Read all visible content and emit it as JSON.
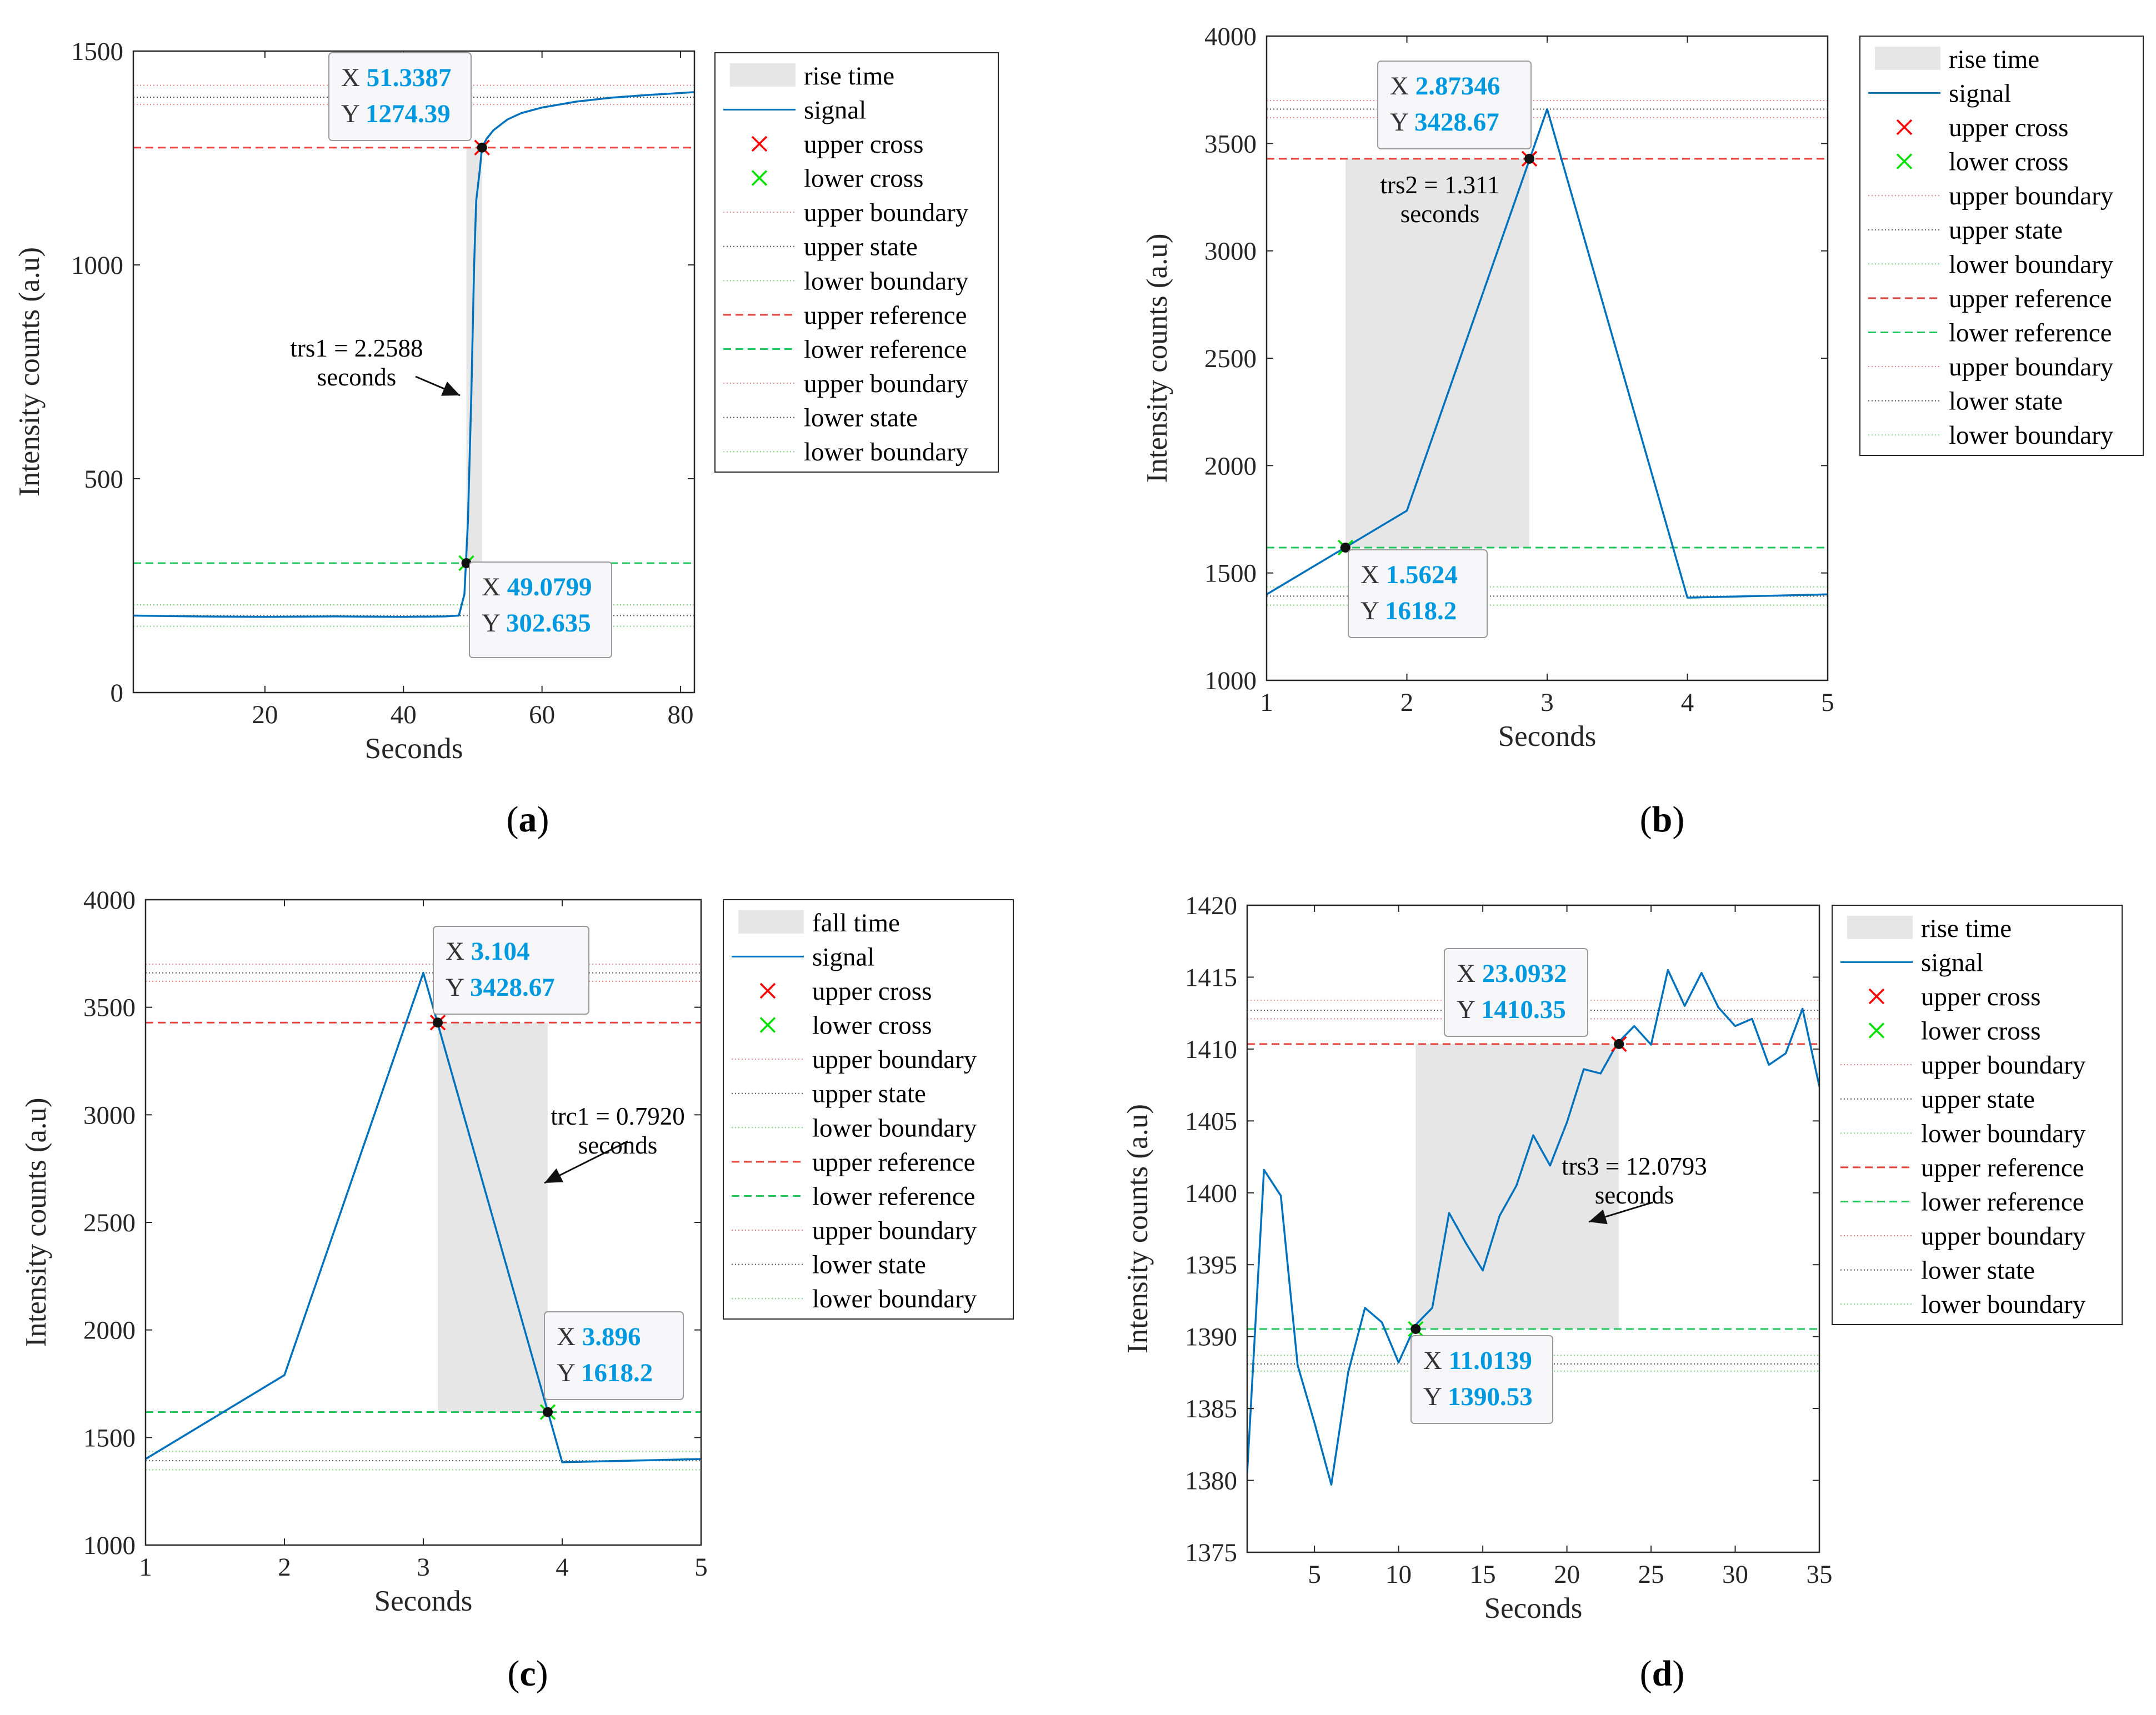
{
  "chart_data": [
    {
      "id": "a",
      "type": "line",
      "caption": "a",
      "xlabel": "Seconds",
      "ylabel": "Intensity counts (a.u)",
      "xlim": [
        1,
        82
      ],
      "ylim": [
        0,
        1500
      ],
      "xticks": [
        20,
        40,
        60,
        80
      ],
      "yticks": [
        0,
        500,
        1000,
        1500
      ],
      "region": {
        "label": "rise time",
        "x0": 49.0799,
        "x1": 51.3387,
        "y0": 302.635,
        "y1": 1274.39
      },
      "series": [
        {
          "name": "signal",
          "x": [
            1,
            10,
            20,
            30,
            40,
            46,
            48,
            48.8,
            49.3,
            49.8,
            50.2,
            50.5,
            51.0,
            51.3387,
            52,
            53,
            55,
            57,
            60,
            65,
            70,
            75,
            80,
            82
          ],
          "y": [
            180,
            178,
            177,
            178,
            177,
            178,
            180,
            230,
            400,
            700,
            1000,
            1150,
            1220,
            1274.39,
            1295,
            1315,
            1340,
            1355,
            1368,
            1382,
            1391,
            1397,
            1402,
            1404
          ]
        }
      ],
      "levels": {
        "upper_reference": 1274.39,
        "lower_reference": 302.635,
        "upper_state": 1392,
        "upper_boundary_1": 1420,
        "upper_boundary_2": 1375,
        "lower_state": 180,
        "lower_boundary_1": 205,
        "lower_boundary_2": 155
      },
      "crosses": {
        "upper": {
          "x": 51.3387,
          "y": 1274.39
        },
        "lower": {
          "x": 49.0799,
          "y": 302.635
        }
      },
      "datatips": [
        {
          "x_label": "X",
          "x_val": "51.3387",
          "y_label": "Y",
          "y_val": "1274.39"
        },
        {
          "x_label": "X",
          "x_val": "49.0799",
          "y_label": "Y",
          "y_val": "302.635"
        }
      ],
      "annotation": {
        "line1": "trs1 = 2.2588",
        "line2": "seconds"
      },
      "legend": [
        "rise time",
        "signal",
        "upper cross",
        "lower cross",
        "upper boundary",
        "upper state",
        "lower boundary",
        "upper reference",
        "lower reference",
        "upper boundary",
        "lower state",
        "lower boundary"
      ]
    },
    {
      "id": "b",
      "type": "line",
      "caption": "b",
      "xlabel": "Seconds",
      "ylabel": "Intensity counts (a.u)",
      "xlim": [
        1,
        5
      ],
      "ylim": [
        1000,
        4000
      ],
      "xticks": [
        1,
        2,
        3,
        4,
        5
      ],
      "yticks": [
        1000,
        1500,
        2000,
        2500,
        3000,
        3500,
        4000
      ],
      "region": {
        "label": "rise time",
        "x0": 1.5624,
        "x1": 2.87346,
        "y0": 1618.2,
        "y1": 3428.67
      },
      "series": [
        {
          "name": "signal",
          "x": [
            1,
            2,
            3,
            4,
            5
          ],
          "y": [
            1400,
            1790,
            3660,
            1385,
            1400
          ]
        }
      ],
      "levels": {
        "upper_reference": 3428.67,
        "lower_reference": 1618.2,
        "upper_state": 3660,
        "upper_boundary_1": 3700,
        "upper_boundary_2": 3620,
        "lower_state": 1392,
        "lower_boundary_1": 1435,
        "lower_boundary_2": 1350
      },
      "crosses": {
        "upper": {
          "x": 2.87346,
          "y": 3428.67
        },
        "lower": {
          "x": 1.5624,
          "y": 1618.2
        }
      },
      "datatips": [
        {
          "x_label": "X",
          "x_val": "2.87346",
          "y_label": "Y",
          "y_val": "3428.67"
        },
        {
          "x_label": "X",
          "x_val": "1.5624",
          "y_label": "Y",
          "y_val": "1618.2"
        }
      ],
      "annotation": {
        "line1": "trs2 = 1.311",
        "line2": "seconds"
      },
      "legend": [
        "rise time",
        "signal",
        "upper cross",
        "lower cross",
        "upper boundary",
        "upper state",
        "lower boundary",
        "upper reference",
        "lower reference",
        "upper boundary",
        "lower state",
        "lower boundary"
      ]
    },
    {
      "id": "c",
      "type": "line",
      "caption": "c",
      "xlabel": "Seconds",
      "ylabel": "Intensity counts (a.u)",
      "xlim": [
        1,
        5
      ],
      "ylim": [
        1000,
        4000
      ],
      "xticks": [
        1,
        2,
        3,
        4,
        5
      ],
      "yticks": [
        1000,
        1500,
        2000,
        2500,
        3000,
        3500,
        4000
      ],
      "region": {
        "label": "fall time",
        "x0": 3.104,
        "x1": 3.896,
        "y0": 1618.2,
        "y1": 3428.67
      },
      "series": [
        {
          "name": "signal",
          "x": [
            1,
            2,
            3,
            4,
            5
          ],
          "y": [
            1400,
            1790,
            3660,
            1385,
            1400
          ]
        }
      ],
      "levels": {
        "upper_reference": 3428.67,
        "lower_reference": 1618.2,
        "upper_state": 3660,
        "upper_boundary_1": 3700,
        "upper_boundary_2": 3620,
        "lower_state": 1392,
        "lower_boundary_1": 1435,
        "lower_boundary_2": 1350
      },
      "crosses": {
        "upper": {
          "x": 3.104,
          "y": 3428.67
        },
        "lower": {
          "x": 3.896,
          "y": 1618.2
        }
      },
      "datatips": [
        {
          "x_label": "X",
          "x_val": "3.104",
          "y_label": "Y",
          "y_val": "3428.67"
        },
        {
          "x_label": "X",
          "x_val": "3.896",
          "y_label": "Y",
          "y_val": "1618.2"
        }
      ],
      "annotation": {
        "line1": "trc1 = 0.7920",
        "line2": "seconds"
      },
      "legend": [
        "fall time",
        "signal",
        "upper cross",
        "lower cross",
        "upper boundary",
        "upper state",
        "lower boundary",
        "upper reference",
        "lower reference",
        "upper boundary",
        "lower state",
        "lower boundary"
      ]
    },
    {
      "id": "d",
      "type": "line",
      "caption": "d",
      "xlabel": "Seconds",
      "ylabel": "Intensity counts (a.u)",
      "xlim": [
        1,
        35
      ],
      "ylim": [
        1375,
        1420
      ],
      "xticks": [
        5,
        10,
        15,
        20,
        25,
        30,
        35
      ],
      "yticks": [
        1375,
        1380,
        1385,
        1390,
        1395,
        1400,
        1405,
        1410,
        1415,
        1420
      ],
      "region": {
        "label": "rise time",
        "x0": 11.0139,
        "x1": 23.0932,
        "y0": 1390.53,
        "y1": 1410.35
      },
      "series": [
        {
          "name": "signal",
          "x": [
            1,
            2,
            3,
            4,
            5,
            6,
            7,
            8,
            9,
            10,
            11,
            12,
            13,
            14,
            15,
            16,
            17,
            18,
            19,
            20,
            21,
            22,
            23,
            24,
            25,
            26,
            27,
            28,
            29,
            30,
            31,
            32,
            33,
            34,
            35
          ],
          "y": [
            1380.5,
            1401.6,
            1399.8,
            1388,
            1384,
            1379.7,
            1387.5,
            1392,
            1391,
            1388.2,
            1390.8,
            1392,
            1398.6,
            1396.5,
            1394.6,
            1398.4,
            1400.5,
            1404,
            1401.9,
            1404.9,
            1408.6,
            1408.3,
            1410.4,
            1411.6,
            1410.3,
            1415.5,
            1413,
            1415.3,
            1412.9,
            1411.6,
            1412.1,
            1408.9,
            1409.7,
            1412.8,
            1407.4
          ]
        }
      ],
      "levels": {
        "upper_reference": 1410.35,
        "lower_reference": 1390.53,
        "upper_state": 1412.7,
        "upper_boundary_1": 1413.4,
        "upper_boundary_2": 1412.1,
        "lower_state": 1388.1,
        "lower_boundary_1": 1388.7,
        "lower_boundary_2": 1387.6
      },
      "crosses": {
        "upper": {
          "x": 23.0932,
          "y": 1410.35
        },
        "lower": {
          "x": 11.0139,
          "y": 1390.53
        }
      },
      "datatips": [
        {
          "x_label": "X",
          "x_val": "23.0932",
          "y_label": "Y",
          "y_val": "1410.35"
        },
        {
          "x_label": "X",
          "x_val": "11.0139",
          "y_label": "Y",
          "y_val": "1390.53"
        }
      ],
      "annotation": {
        "line1": "trs3 = 12.0793",
        "line2": "seconds"
      },
      "legend": [
        "rise time",
        "signal",
        "upper cross",
        "lower cross",
        "upper boundary",
        "upper state",
        "lower boundary",
        "upper reference",
        "lower reference",
        "upper boundary",
        "lower state",
        "lower boundary"
      ]
    }
  ],
  "colors": {
    "signal": "#0072bd",
    "region": "#e6e6e6",
    "upper_reference": "#e8403a",
    "lower_reference": "#22c55e",
    "upper_cross": "#ff0000",
    "lower_cross": "#00e000",
    "state": "#555555",
    "upper_boundary": "#e88a8a",
    "lower_boundary": "#7ed67e",
    "datatip_value": "#0099e0"
  }
}
